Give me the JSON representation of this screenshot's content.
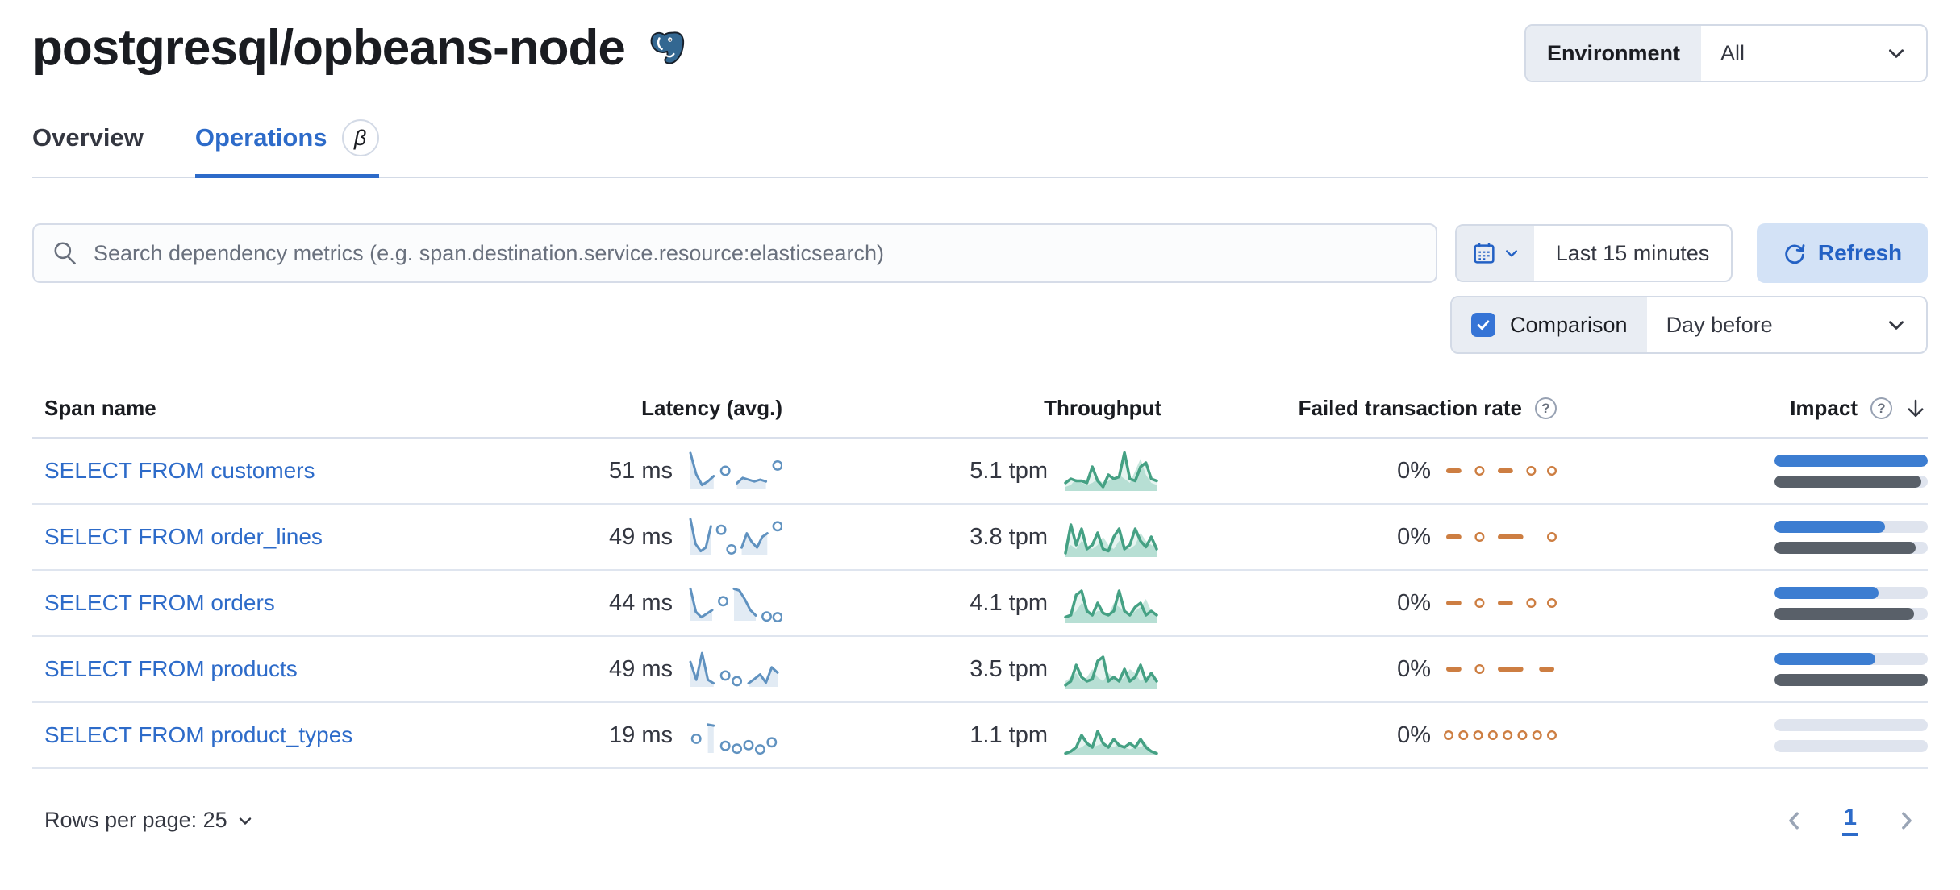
{
  "header": {
    "title": "postgresql/opbeans-node",
    "environment_label": "Environment",
    "environment_value": "All"
  },
  "tabs": [
    {
      "label": "Overview",
      "active": false
    },
    {
      "label": "Operations",
      "active": true,
      "beta_glyph": "β"
    }
  ],
  "search": {
    "placeholder": "Search dependency metrics (e.g. span.destination.service.resource:elasticsearch)"
  },
  "time_controls": {
    "range_label": "Last 15 minutes",
    "refresh_label": "Refresh"
  },
  "comparison": {
    "label": "Comparison",
    "checked": true,
    "value": "Day before"
  },
  "table": {
    "columns": [
      "Span name",
      "Latency (avg.)",
      "Throughput",
      "Failed transaction rate",
      "Impact"
    ],
    "rows": [
      {
        "span_name": "SELECT FROM customers",
        "latency": "51 ms",
        "throughput": "5.1 tpm",
        "failed_rate": "0%",
        "latency_spark": {
          "type": "line",
          "color": "#6092c0",
          "fill": "rgba(96,146,192,0.18)",
          "values": [
            10,
            4,
            1,
            2,
            3.5,
            null,
            5,
            null,
            1.5,
            3,
            2.5,
            2,
            2.5,
            2,
            null,
            6.5
          ]
        },
        "throughput_spark": {
          "type": "area",
          "color": "#45a184",
          "fill": "rgba(84,179,153,0.15)",
          "compFill": "rgba(84,179,153,0.32)",
          "values": [
            2,
            3,
            2.5,
            2.5,
            2,
            6,
            2.5,
            1,
            4,
            3,
            3.5,
            9.5,
            3,
            2.5,
            6,
            7,
            3,
            2.5
          ],
          "comparison": [
            1,
            1.5,
            3,
            2,
            1.5,
            2,
            3,
            2,
            2.5,
            3,
            4,
            3,
            2,
            5,
            8,
            4,
            2,
            1.5
          ]
        },
        "failed_spark": {
          "type": "dots",
          "color": "#cd7e42",
          "values": [
            0,
            0,
            null,
            0,
            null,
            0,
            0,
            null,
            0,
            null,
            0
          ]
        },
        "impact": {
          "current": 1.0,
          "previous": 0.96
        }
      },
      {
        "span_name": "SELECT FROM order_lines",
        "latency": "49 ms",
        "throughput": "3.8 tpm",
        "failed_rate": "0%",
        "latency_spark": {
          "type": "line",
          "color": "#6092c0",
          "fill": "rgba(96,146,192,0.18)",
          "values": [
            10,
            3,
            1,
            2,
            8,
            null,
            7,
            null,
            1.5,
            null,
            2,
            6,
            3.5,
            2,
            5,
            6,
            null,
            8
          ]
        },
        "throughput_spark": {
          "type": "area",
          "color": "#45a184",
          "fill": "rgba(84,179,153,0.15)",
          "compFill": "rgba(84,179,153,0.32)",
          "values": [
            1,
            8,
            3,
            7,
            2,
            3,
            6,
            2,
            1.5,
            5,
            7,
            2,
            3,
            7,
            4,
            2.5,
            5,
            2
          ],
          "comparison": [
            2,
            3,
            2,
            4,
            3,
            2,
            3,
            5,
            3,
            2,
            4,
            3,
            2,
            3,
            6,
            4,
            3,
            2
          ]
        },
        "failed_spark": {
          "type": "dots",
          "color": "#cd7e42",
          "values": [
            0,
            0,
            null,
            0,
            null,
            0,
            0,
            0,
            null,
            null,
            0
          ]
        },
        "impact": {
          "current": 0.72,
          "previous": 0.92
        }
      },
      {
        "span_name": "SELECT FROM orders",
        "latency": "44 ms",
        "throughput": "4.1 tpm",
        "failed_rate": "0%",
        "latency_spark": {
          "type": "line",
          "color": "#6092c0",
          "fill": "rgba(96,146,192,0.18)",
          "values": [
            9,
            2.5,
            1,
            2,
            3,
            null,
            5.5,
            null,
            9,
            8.5,
            6,
            3,
            1.5,
            null,
            1.2,
            null,
            1
          ]
        },
        "throughput_spark": {
          "type": "area",
          "color": "#45a184",
          "fill": "rgba(84,179,153,0.15)",
          "compFill": "rgba(84,179,153,0.32)",
          "values": [
            1.5,
            2,
            7,
            8,
            3,
            2,
            5,
            2.5,
            2,
            3,
            8,
            3,
            2,
            4,
            5,
            2,
            3,
            2
          ],
          "comparison": [
            1,
            2,
            3,
            5,
            4,
            2,
            3,
            3,
            2,
            5,
            4,
            3,
            2,
            3,
            4,
            6,
            3,
            2
          ]
        },
        "failed_spark": {
          "type": "dots",
          "color": "#cd7e42",
          "values": [
            0,
            0,
            null,
            0,
            null,
            0,
            0,
            null,
            0,
            null,
            0
          ]
        },
        "impact": {
          "current": 0.68,
          "previous": 0.91
        }
      },
      {
        "span_name": "SELECT FROM products",
        "latency": "49 ms",
        "throughput": "3.5 tpm",
        "failed_rate": "0%",
        "latency_spark": {
          "type": "line",
          "color": "#6092c0",
          "fill": "rgba(96,146,192,0.18)",
          "values": [
            7,
            2,
            9.5,
            2,
            1,
            null,
            3.2,
            null,
            1.6,
            null,
            1,
            2.2,
            3.5,
            1.2,
            5.5,
            4
          ]
        },
        "throughput_spark": {
          "type": "area",
          "color": "#45a184",
          "fill": "rgba(84,179,153,0.15)",
          "compFill": "rgba(84,179,153,0.32)",
          "values": [
            1,
            2,
            6,
            3,
            2,
            2.5,
            7,
            8,
            2,
            3,
            2,
            5,
            2,
            3,
            6,
            2,
            4,
            2
          ],
          "comparison": [
            2,
            3,
            4,
            2,
            3,
            5,
            3,
            2,
            4,
            3,
            2,
            3,
            5,
            4,
            2,
            3,
            4,
            2
          ]
        },
        "failed_spark": {
          "type": "dots",
          "color": "#cd7e42",
          "values": [
            0,
            0,
            null,
            0,
            null,
            0,
            0,
            0,
            null,
            0,
            0
          ]
        },
        "impact": {
          "current": 0.66,
          "previous": 1.0
        }
      },
      {
        "span_name": "SELECT FROM product_types",
        "latency": "19 ms",
        "throughput": "1.1 tpm",
        "failed_rate": "0%",
        "latency_spark": {
          "type": "line",
          "color": "#6092c0",
          "fill": "rgba(96,146,192,0.18)",
          "values": [
            null,
            4,
            null,
            8,
            7.7,
            null,
            2,
            null,
            1.2,
            null,
            2.2,
            null,
            1,
            null,
            3,
            null
          ]
        },
        "throughput_spark": {
          "type": "area",
          "color": "#45a184",
          "fill": "rgba(84,179,153,0.15)",
          "compFill": "rgba(84,179,153,0.32)",
          "values": [
            0.5,
            1,
            2,
            5,
            3,
            2,
            6,
            3,
            2,
            4,
            2.5,
            2,
            3,
            2,
            4,
            2,
            1,
            0.5
          ],
          "comparison": [
            0.5,
            1,
            1.5,
            2,
            3,
            2,
            2.5,
            3,
            2,
            2,
            3,
            2,
            1.5,
            2,
            2,
            3,
            1,
            0.5
          ]
        },
        "failed_spark": {
          "type": "dots",
          "color": "#cd7e42",
          "values": [
            0,
            null,
            0,
            null,
            0,
            null,
            0,
            null,
            0,
            null,
            0,
            null,
            0,
            null,
            0
          ]
        },
        "impact": {
          "current": 0.0,
          "previous": 0.0
        }
      }
    ]
  },
  "footer": {
    "rows_per_page_label": "Rows per page: 25",
    "page": "1"
  },
  "colors": {
    "accent_blue": "#2d6bc9",
    "impact_current": "#3c7dd1",
    "impact_previous": "#596069",
    "latency_spark": "#6092c0",
    "throughput_spark": "#45a184",
    "failed_spark": "#cd7e42"
  }
}
